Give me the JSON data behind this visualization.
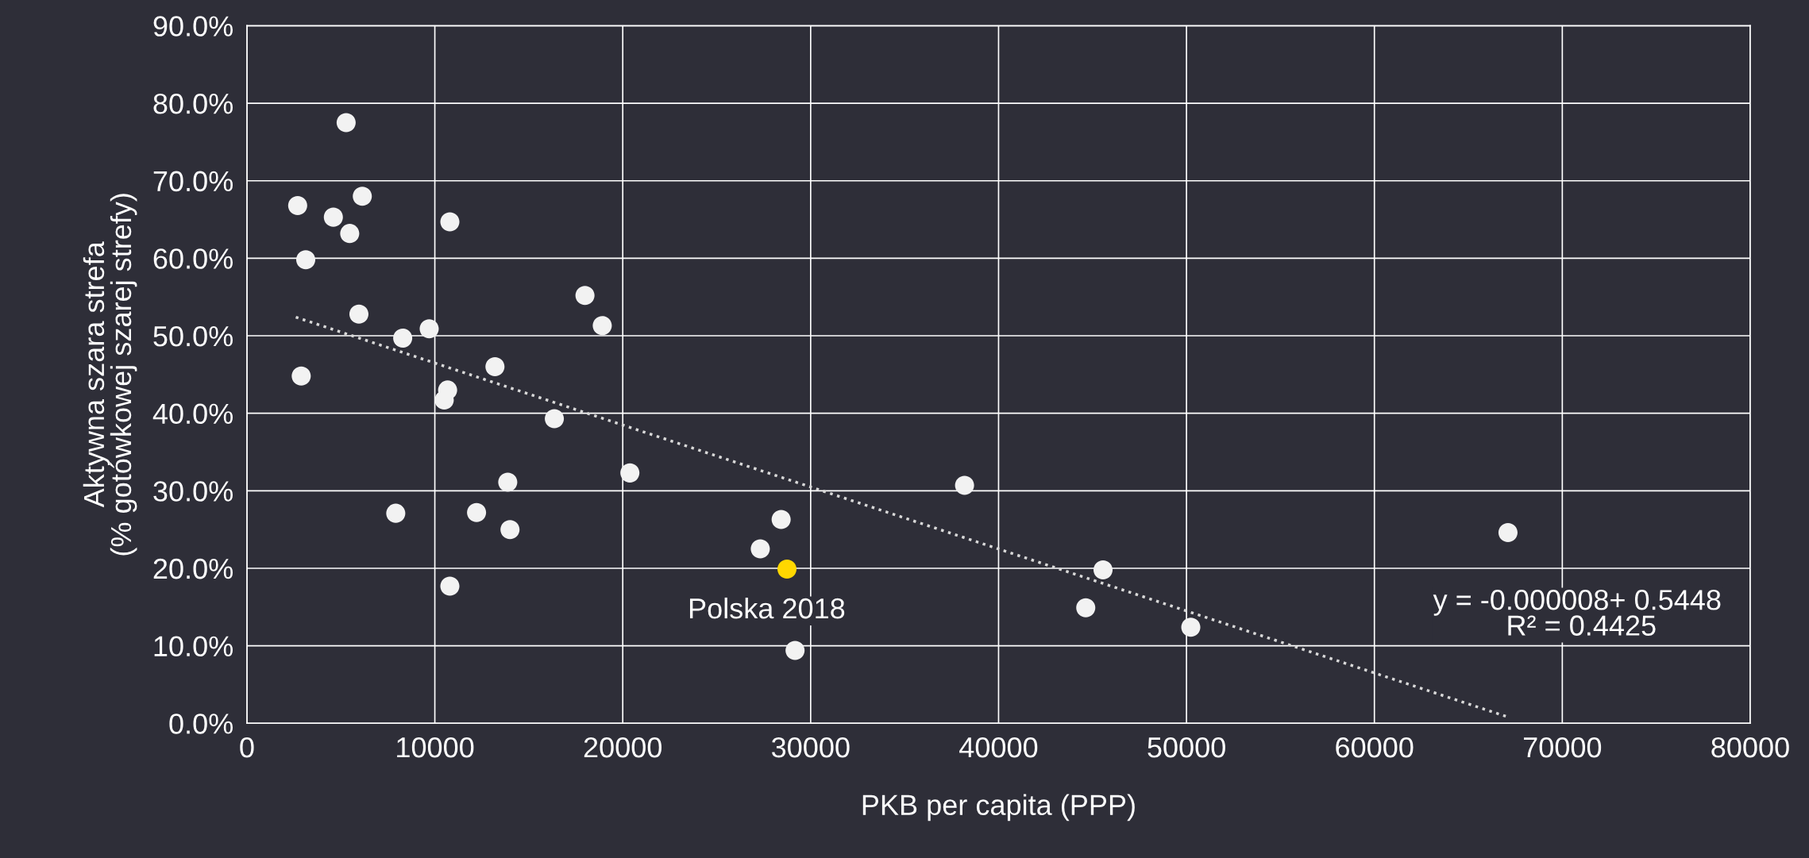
{
  "chart_data": {
    "type": "scatter",
    "xlabel": "PKB per capita (PPP)",
    "ylabel": "Aktywna szara strefa\n(% gotówkowej szarej strefy)",
    "series": [
      {
        "color": "#f2f2f2",
        "x": [
          2700,
          5280,
          4600,
          6140,
          5470,
          3130,
          10800,
          5960,
          2890,
          8290,
          9700,
          17990,
          18910,
          13200,
          10680,
          10500,
          16360,
          7920,
          12220,
          13880,
          14000,
          20380,
          10800,
          27320,
          28430,
          29170,
          38190,
          44640,
          45560,
          50230,
          67110
        ],
        "values": [
          66.8,
          77.5,
          65.3,
          68.0,
          63.2,
          59.8,
          64.7,
          52.8,
          44.8,
          49.7,
          50.9,
          55.2,
          51.3,
          46.0,
          43.0,
          41.7,
          39.3,
          27.1,
          27.2,
          31.1,
          25.0,
          32.3,
          17.7,
          22.5,
          26.3,
          9.4,
          30.7,
          14.9,
          19.8,
          12.4,
          24.6
        ]
      },
      {
        "color": "#ffd700",
        "x": [
          28740
        ],
        "values": [
          19.9
        ]
      },
      {
        "type": "line",
        "color": "#d9d9d9",
        "line_style": "dotted",
        "marker": "none",
        "x": [
          2600,
          67000
        ],
        "values": [
          52.4,
          0.9
        ]
      }
    ],
    "xlim": [
      0,
      80000
    ],
    "xticks": [
      0,
      10000,
      20000,
      30000,
      40000,
      50000,
      60000,
      70000,
      80000
    ],
    "ylim": [
      0,
      90
    ],
    "yticks": [
      {
        "value": 0,
        "label": "0.0%"
      },
      {
        "value": 10,
        "label": "10.0%"
      },
      {
        "value": 20,
        "label": "20.0%"
      },
      {
        "value": 30,
        "label": "30.0%"
      },
      {
        "value": 40,
        "label": "40.0%"
      },
      {
        "value": 50,
        "label": "50.0%"
      },
      {
        "value": 60,
        "label": "60.0%"
      },
      {
        "value": 70,
        "label": "70.0%"
      },
      {
        "value": 80,
        "label": "80.0%"
      },
      {
        "value": 90,
        "label": "90.0%"
      }
    ],
    "grid": true,
    "legend": false,
    "marker": "circle",
    "annotations": [
      {
        "text": "Polska 2018",
        "x": 28740,
        "y": 19.9
      },
      "y = -0.000008+ 0.5448\n R² = 0.4425"
    ]
  }
}
